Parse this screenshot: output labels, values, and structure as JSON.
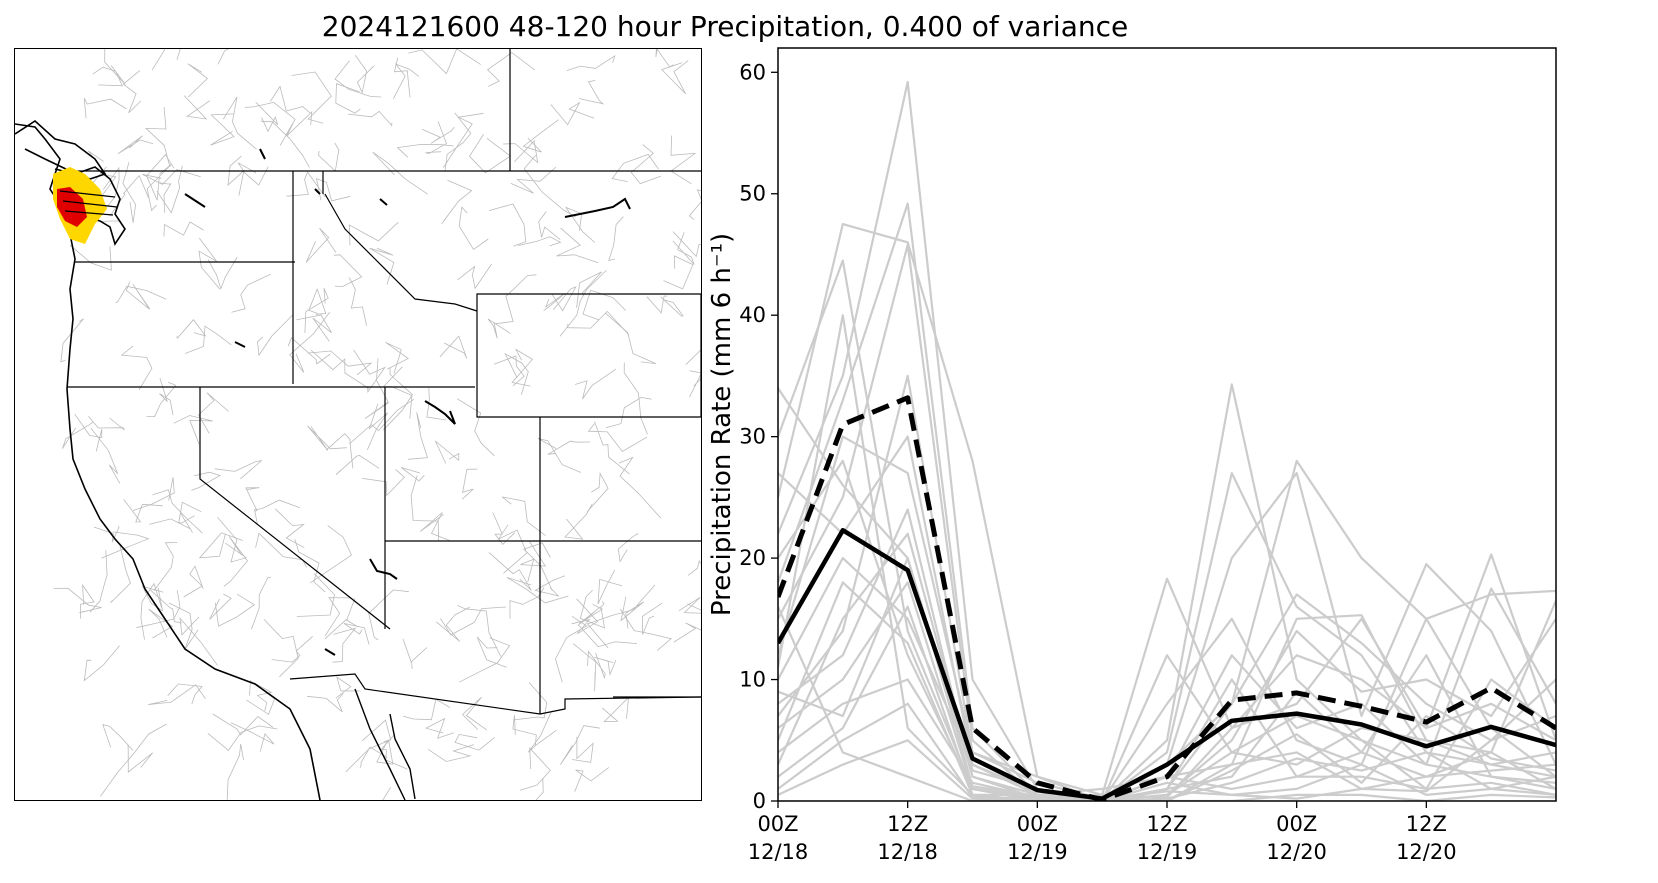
{
  "title": "2024121600 48-120 hour Precipitation, 0.400 of variance",
  "map": {
    "background": "#ffffff",
    "state_line_color": "#000000",
    "basin_line_color": "#bbbbbb",
    "highlight_colors": [
      "#ffd700",
      "#e00000"
    ]
  },
  "chart_data": {
    "type": "line",
    "ylabel": "Precipitation Rate (mm 6 h⁻¹)",
    "ylim": [
      0,
      62
    ],
    "yticks": [
      0,
      10,
      20,
      30,
      40,
      50,
      60
    ],
    "x": [
      0,
      6,
      12,
      18,
      24,
      30,
      36,
      42,
      48,
      54,
      60,
      66,
      72
    ],
    "xlim": [
      0,
      72
    ],
    "xticks": [
      0,
      12,
      24,
      36,
      48,
      60
    ],
    "xtick_labels": [
      [
        "00Z",
        "12/18"
      ],
      [
        "12Z",
        "12/18"
      ],
      [
        "00Z",
        "12/19"
      ],
      [
        "12Z",
        "12/19"
      ],
      [
        "00Z",
        "12/20"
      ],
      [
        "12Z",
        "12/20"
      ]
    ],
    "colors": {
      "members": "#cccccc",
      "mean": "#000000",
      "highlight": "#000000"
    },
    "series": [
      {
        "style": "solid-bold",
        "values": [
          13.0,
          22.3,
          19.0,
          3.5,
          0.9,
          0.2,
          3.0,
          6.6,
          7.2,
          6.3,
          4.5,
          6.1,
          4.6
        ]
      },
      {
        "style": "dashed-bold",
        "values": [
          16.8,
          31.0,
          33.2,
          6.0,
          1.5,
          0.1,
          2.0,
          8.3,
          8.9,
          7.8,
          6.5,
          9.3,
          6.0
        ]
      }
    ],
    "members": [
      [
        34.0,
        26.0,
        20.0,
        2.0,
        0.5,
        0.0,
        3.0,
        8.0,
        28.0,
        20.0,
        15.0,
        17.0,
        17.3
      ],
      [
        30.0,
        44.5,
        14.0,
        1.0,
        0.3,
        0.0,
        5.0,
        34.3,
        10.0,
        5.0,
        3.0,
        2.0,
        1.5
      ],
      [
        25.0,
        47.5,
        46.0,
        28.0,
        2.0,
        0.5,
        18.3,
        6.0,
        8.0,
        15.0,
        6.0,
        20.3,
        5.0
      ],
      [
        22.0,
        35.0,
        59.2,
        10.0,
        1.0,
        0.0,
        4.0,
        27.0,
        16.0,
        12.0,
        4.0,
        3.0,
        2.0
      ],
      [
        18.0,
        33.0,
        49.2,
        6.0,
        0.5,
        1.0,
        2.0,
        3.0,
        15.0,
        15.3,
        5.0,
        4.0,
        16.5
      ],
      [
        15.0,
        25.0,
        45.8,
        5.0,
        0.3,
        0.0,
        8.0,
        15.0,
        5.0,
        3.0,
        15.0,
        6.0,
        2.0
      ],
      [
        12.0,
        30.0,
        27.0,
        4.0,
        1.5,
        0.2,
        3.0,
        20.0,
        27.0,
        7.0,
        19.5,
        14.0,
        3.0
      ],
      [
        10.0,
        20.0,
        15.0,
        3.0,
        0.8,
        0.0,
        1.0,
        8.0,
        17.0,
        13.0,
        8.0,
        5.0,
        7.0
      ],
      [
        8.0,
        12.0,
        24.0,
        2.0,
        0.2,
        0.0,
        2.0,
        12.0,
        6.0,
        8.0,
        3.0,
        17.5,
        8.0
      ],
      [
        6.0,
        10.0,
        18.0,
        1.0,
        0.0,
        0.0,
        0.5,
        4.0,
        3.0,
        6.0,
        5.0,
        3.0,
        4.0
      ],
      [
        5.0,
        18.0,
        13.0,
        0.5,
        0.5,
        0.0,
        1.0,
        2.0,
        9.0,
        4.0,
        2.0,
        4.0,
        1.0
      ],
      [
        4.0,
        8.0,
        10.0,
        1.5,
        0.3,
        0.5,
        0.3,
        6.0,
        12.0,
        10.0,
        6.0,
        8.0,
        5.0
      ],
      [
        3.0,
        15.0,
        22.0,
        2.5,
        1.0,
        0.0,
        2.0,
        1.0,
        2.0,
        2.0,
        1.0,
        1.5,
        0.5
      ],
      [
        2.0,
        6.0,
        16.0,
        0.5,
        0.0,
        0.0,
        0.0,
        3.0,
        4.0,
        1.0,
        2.0,
        2.5,
        3.0
      ],
      [
        1.0,
        5.0,
        8.0,
        0.3,
        0.2,
        0.0,
        1.5,
        0.5,
        1.0,
        3.0,
        0.5,
        1.0,
        2.0
      ],
      [
        0.5,
        3.0,
        5.0,
        0.2,
        0.0,
        0.0,
        0.0,
        0.0,
        0.5,
        0.5,
        0.0,
        0.5,
        0.3
      ],
      [
        20.0,
        28.0,
        12.0,
        1.0,
        0.1,
        0.0,
        0.5,
        5.0,
        14.0,
        9.0,
        10.0,
        7.0,
        15.0
      ],
      [
        27.0,
        22.0,
        30.0,
        3.0,
        0.5,
        0.0,
        1.0,
        10.0,
        2.0,
        4.0,
        12.0,
        2.0,
        1.0
      ],
      [
        11.0,
        40.0,
        6.0,
        0.5,
        0.0,
        0.0,
        12.0,
        4.0,
        7.0,
        5.0,
        1.0,
        10.0,
        6.0
      ],
      [
        7.0,
        14.0,
        35.0,
        4.0,
        2.0,
        0.0,
        0.2,
        1.5,
        3.5,
        2.5,
        4.0,
        1.0,
        0.5
      ],
      [
        16.0,
        4.0,
        2.0,
        0.0,
        0.0,
        0.0,
        0.0,
        2.5,
        5.5,
        1.5,
        7.0,
        3.5,
        2.5
      ],
      [
        9.0,
        7.0,
        20.0,
        1.2,
        0.4,
        0.1,
        0.8,
        0.5,
        0.2,
        1.0,
        0.8,
        5.0,
        10.0
      ]
    ]
  }
}
